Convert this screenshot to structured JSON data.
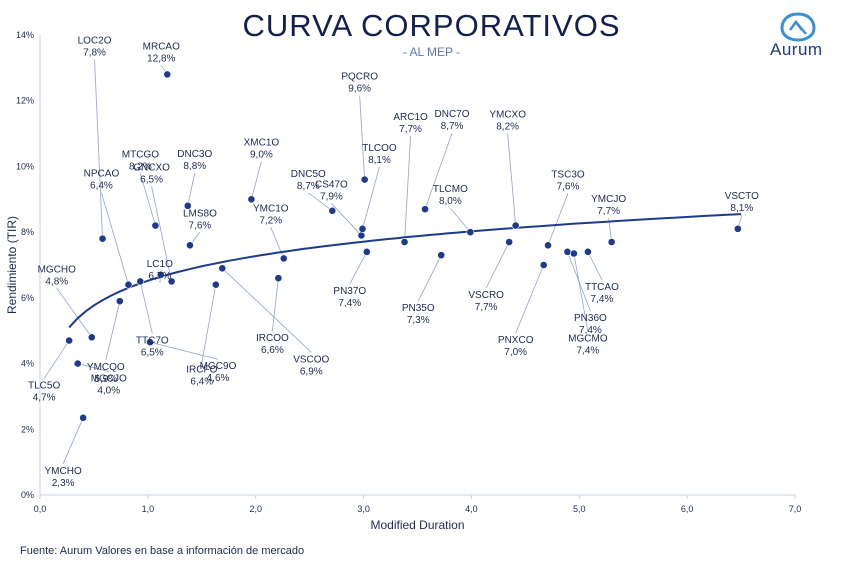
{
  "header": {
    "title": "CURVA CORPORATIVOS",
    "subtitle": "- AL MEP -",
    "brand": "Aurum"
  },
  "footer": {
    "source": "Fuente: Aurum Valores en base a información de mercado"
  },
  "colors": {
    "point": "#1e3a8a",
    "curve": "#1e3a8a",
    "leader": "#8fa6cc",
    "text": "#1b2a55"
  },
  "chart_data": {
    "type": "scatter",
    "title": "CURVA CORPORATIVOS",
    "subtitle": "- AL MEP -",
    "xlabel": "Modified Duration",
    "ylabel": "Rendimiento (TIR)",
    "xlim": [
      0,
      7
    ],
    "ylim": [
      0,
      14
    ],
    "xticks": [
      "0,0",
      "1,0",
      "2,0",
      "3,0",
      "4,0",
      "5,0",
      "6,0",
      "7,0"
    ],
    "yticks": [
      "0%",
      "2%",
      "4%",
      "6%",
      "8%",
      "10%",
      "12%",
      "14%"
    ],
    "grid": false,
    "trendline": {
      "type": "logarithmic",
      "x_range": [
        0.27,
        6.5
      ],
      "y_at_start": 5.1,
      "y_at_end": 8.55
    },
    "points": [
      {
        "name": "LOC2O",
        "value": "7,8%",
        "x": 0.58,
        "y": 7.8
      },
      {
        "name": "MRCAO",
        "value": "12,8%",
        "x": 1.18,
        "y": 12.8
      },
      {
        "name": "MGCHO",
        "value": "4,8%",
        "x": 0.48,
        "y": 4.8
      },
      {
        "name": "NPCAO",
        "value": "6,4%",
        "x": 0.82,
        "y": 6.4
      },
      {
        "name": "GNCXO",
        "value": "6,5%",
        "x": 1.22,
        "y": 6.5
      },
      {
        "name": "MTCGO",
        "value": "8,2%",
        "x": 1.07,
        "y": 8.2
      },
      {
        "name": "DNC3O",
        "value": "8,8%",
        "x": 1.37,
        "y": 8.8
      },
      {
        "name": "XMC1O",
        "value": "9,0%",
        "x": 1.96,
        "y": 9.0
      },
      {
        "name": "LMS8O",
        "value": "7,6%",
        "x": 1.39,
        "y": 7.6
      },
      {
        "name": "LC1O",
        "value": "6,7%",
        "x": 1.12,
        "y": 6.7
      },
      {
        "name": "YMC1O",
        "value": "7,2%",
        "x": 2.26,
        "y": 7.2
      },
      {
        "name": "DNC5O",
        "value": "8,7%",
        "x": 2.71,
        "y": 8.65
      },
      {
        "name": "CS47O",
        "value": "7,9%",
        "x": 2.98,
        "y": 7.9
      },
      {
        "name": "PQCRO",
        "value": "9,6%",
        "x": 3.01,
        "y": 9.6
      },
      {
        "name": "TLCOO",
        "value": "8,1%",
        "x": 2.99,
        "y": 8.1
      },
      {
        "name": "ARC1O",
        "value": "7,7%",
        "x": 3.38,
        "y": 7.7
      },
      {
        "name": "DNC7O",
        "value": "8,7%",
        "x": 3.57,
        "y": 8.7
      },
      {
        "name": "YMCXO",
        "value": "8,2%",
        "x": 4.41,
        "y": 8.2
      },
      {
        "name": "TLCMO",
        "value": "8,0%",
        "x": 3.99,
        "y": 8.0
      },
      {
        "name": "TSC3O",
        "value": "7,6%",
        "x": 4.71,
        "y": 7.6
      },
      {
        "name": "YMCJO",
        "value": "7,7%",
        "x": 5.3,
        "y": 7.7
      },
      {
        "name": "VSCTO",
        "value": "8,1%",
        "x": 6.47,
        "y": 8.1
      },
      {
        "name": "PN37O",
        "value": "7,4%",
        "x": 3.03,
        "y": 7.4
      },
      {
        "name": "IRCOO",
        "value": "6,6%",
        "x": 2.21,
        "y": 6.6
      },
      {
        "name": "PN35O",
        "value": "7,3%",
        "x": 3.72,
        "y": 7.3
      },
      {
        "name": "VSCRO",
        "value": "7,7%",
        "x": 4.35,
        "y": 7.7
      },
      {
        "name": "TTCAO",
        "value": "7,4%",
        "x": 5.08,
        "y": 7.4
      },
      {
        "name": "PN36O",
        "value": "7,4%",
        "x": 4.89,
        "y": 7.4
      },
      {
        "name": "PNXCO",
        "value": "7,0%",
        "x": 4.67,
        "y": 7.0
      },
      {
        "name": "MGCMO",
        "value": "7,4%",
        "x": 4.95,
        "y": 7.35
      },
      {
        "name": "TTC7O",
        "value": "6,5%",
        "x": 0.93,
        "y": 6.5
      },
      {
        "name": "YMCQO",
        "value": "5,9%",
        "x": 0.74,
        "y": 5.9
      },
      {
        "name": "IRCFO",
        "value": "6,4%",
        "x": 1.63,
        "y": 6.4
      },
      {
        "name": "VSCOO",
        "value": "6,9%",
        "x": 1.69,
        "y": 6.9
      },
      {
        "name": "TLC5O",
        "value": "4,7%",
        "x": 0.27,
        "y": 4.7
      },
      {
        "name": "MGCJO",
        "value": "4,0%",
        "x": 0.35,
        "y": 4.0
      },
      {
        "name": "MGC9O",
        "value": "4,6%",
        "x": 1.02,
        "y": 4.65
      },
      {
        "name": "YMCHO",
        "value": "2,3%",
        "x": 0.4,
        "y": 2.35
      }
    ]
  }
}
